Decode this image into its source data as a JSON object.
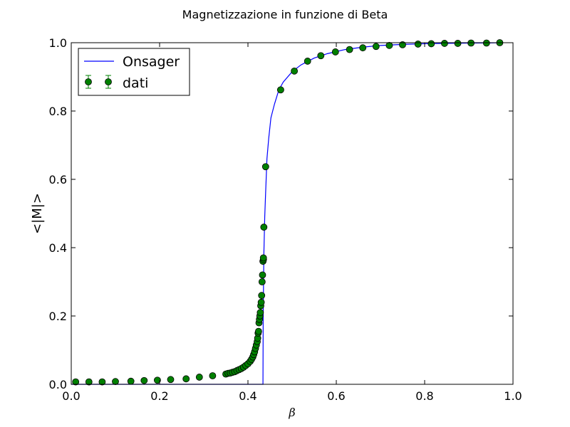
{
  "chart_data": {
    "type": "line",
    "title": "Magnetizzazione in funzione di Beta",
    "xlabel": "β",
    "ylabel": "<|M|>",
    "xlim": [
      0.0,
      1.0
    ],
    "ylim": [
      0.0,
      1.0
    ],
    "xticks": [
      "0.0",
      "0.2",
      "0.4",
      "0.6",
      "0.8",
      "1.0"
    ],
    "yticks": [
      "0.0",
      "0.2",
      "0.4",
      "0.6",
      "0.8",
      "1.0"
    ],
    "grid": false,
    "legend_position": "top-left",
    "series": [
      {
        "name": "Onsager",
        "kind": "line",
        "color": "#0000ff",
        "x": [
          0.0,
          0.434,
          0.4345,
          0.436,
          0.438,
          0.44,
          0.443,
          0.447,
          0.452,
          0.46,
          0.47,
          0.48,
          0.5,
          0.52,
          0.55,
          0.58,
          0.62,
          0.66,
          0.7,
          0.75,
          0.8,
          0.85,
          0.9,
          0.95,
          0.975
        ],
        "y": [
          0.0,
          0.0,
          0.2,
          0.38,
          0.49,
          0.56,
          0.66,
          0.72,
          0.78,
          0.82,
          0.862,
          0.885,
          0.915,
          0.935,
          0.955,
          0.968,
          0.98,
          0.987,
          0.992,
          0.995,
          0.997,
          0.998,
          0.999,
          0.9995,
          1.0
        ]
      },
      {
        "name": "dati",
        "kind": "errorbar",
        "color": "#008000",
        "x": [
          0.01,
          0.04,
          0.07,
          0.1,
          0.135,
          0.165,
          0.195,
          0.225,
          0.26,
          0.29,
          0.32,
          0.35,
          0.355,
          0.36,
          0.365,
          0.37,
          0.375,
          0.38,
          0.385,
          0.39,
          0.395,
          0.4,
          0.405,
          0.408,
          0.411,
          0.413,
          0.415,
          0.417,
          0.419,
          0.421,
          0.422,
          0.423,
          0.424,
          0.425,
          0.426,
          0.427,
          0.428,
          0.429,
          0.43,
          0.431,
          0.432,
          0.433,
          0.434,
          0.435,
          0.435,
          0.436,
          0.44,
          0.474,
          0.505,
          0.535,
          0.565,
          0.598,
          0.63,
          0.66,
          0.69,
          0.72,
          0.75,
          0.785,
          0.815,
          0.845,
          0.875,
          0.905,
          0.94,
          0.97
        ],
        "y": [
          0.007,
          0.007,
          0.007,
          0.008,
          0.009,
          0.011,
          0.012,
          0.014,
          0.016,
          0.021,
          0.025,
          0.03,
          0.032,
          0.033,
          0.035,
          0.037,
          0.04,
          0.043,
          0.046,
          0.05,
          0.055,
          0.06,
          0.067,
          0.073,
          0.08,
          0.087,
          0.095,
          0.105,
          0.115,
          0.125,
          0.135,
          0.15,
          0.155,
          0.18,
          0.19,
          0.2,
          0.21,
          0.23,
          0.24,
          0.26,
          0.3,
          0.32,
          0.36,
          0.365,
          0.37,
          0.46,
          0.637,
          0.862,
          0.917,
          0.946,
          0.962,
          0.973,
          0.98,
          0.985,
          0.989,
          0.992,
          0.994,
          0.996,
          0.997,
          0.998,
          0.998,
          0.999,
          0.999,
          1.0
        ]
      }
    ]
  }
}
